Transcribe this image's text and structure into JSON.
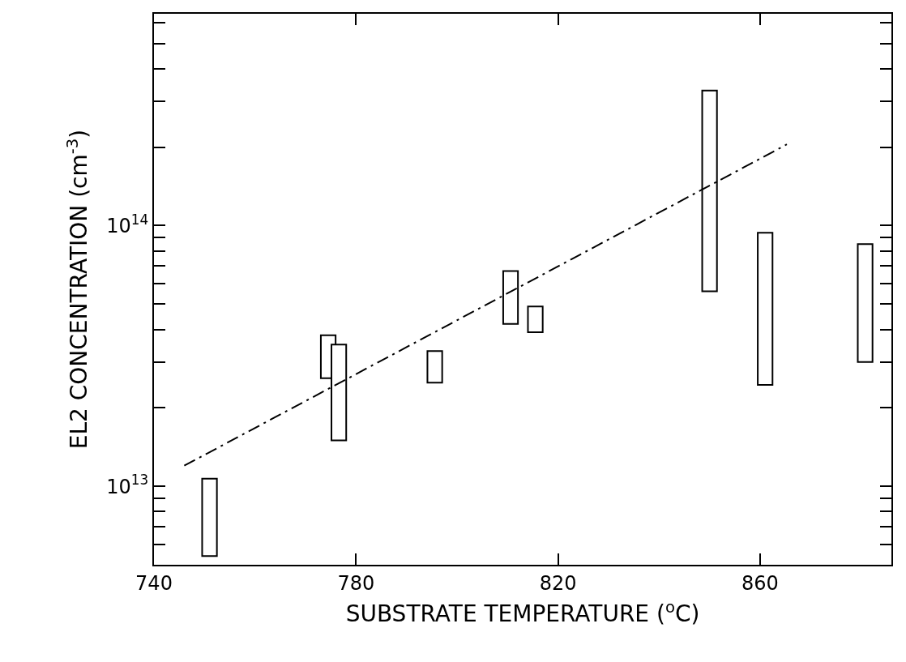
{
  "chart_data": {
    "type": "bar",
    "xlabel": "SUBSTRATE TEMPERATURE ($^{o}$C)",
    "ylabel": "EL2 CONCENTRATION (cm$^{-3}$)",
    "x": [
      751,
      774.5,
      776.6,
      795.6,
      810.6,
      815.5,
      850,
      861,
      880.8
    ],
    "series": [
      {
        "color": "#ffffff",
        "base": [
          5400000000000.0,
          26000000000000.0,
          15000000000000.0,
          25000000000000.0,
          42000000000000.0,
          39000000000000.0,
          56000000000000.0,
          24500000000000.0,
          30000000000000.0
        ],
        "values": [
          5300000000000.0,
          12000000000000.0,
          20000000000000.0,
          8000000000000.0,
          25000000000000.0,
          10000000000000.0,
          274000000000000.0,
          69500000000000.0,
          55000000000000.0
        ]
      },
      {
        "type": "line",
        "color": "#000000",
        "line_style": "dashed",
        "marker": "none",
        "x": [
          746,
          865.3
        ],
        "values": [
          12000000000000.0,
          205000000000000.0
        ]
      }
    ],
    "log": "y",
    "xlim": [
      740,
      886
    ],
    "xticks": [
      740,
      780,
      820,
      860
    ],
    "ylim": [
      5000000000000.0,
      650000000000000.0
    ],
    "yticks": [
      {
        "value": 6000000000000.0,
        "label": null
      },
      {
        "value": 7000000000000.0,
        "label": null
      },
      {
        "value": 8000000000000.0,
        "label": null
      },
      {
        "value": 9000000000000.0,
        "label": null
      },
      {
        "value": 10000000000000.0,
        "label": "10$^{13}$"
      },
      {
        "value": 20000000000000.0,
        "label": null
      },
      {
        "value": 30000000000000.0,
        "label": null
      },
      {
        "value": 40000000000000.0,
        "label": null
      },
      {
        "value": 50000000000000.0,
        "label": null
      },
      {
        "value": 60000000000000.0,
        "label": null
      },
      {
        "value": 70000000000000.0,
        "label": null
      },
      {
        "value": 80000000000000.0,
        "label": null
      },
      {
        "value": 90000000000000.0,
        "label": null
      },
      {
        "value": 100000000000000.0,
        "label": "10$^{14}$"
      },
      {
        "value": 200000000000000.0,
        "label": null
      },
      {
        "value": 300000000000000.0,
        "label": null
      },
      {
        "value": 400000000000000.0,
        "label": null
      },
      {
        "value": 500000000000000.0,
        "label": null
      },
      {
        "value": 600000000000000.0,
        "label": null
      }
    ]
  }
}
